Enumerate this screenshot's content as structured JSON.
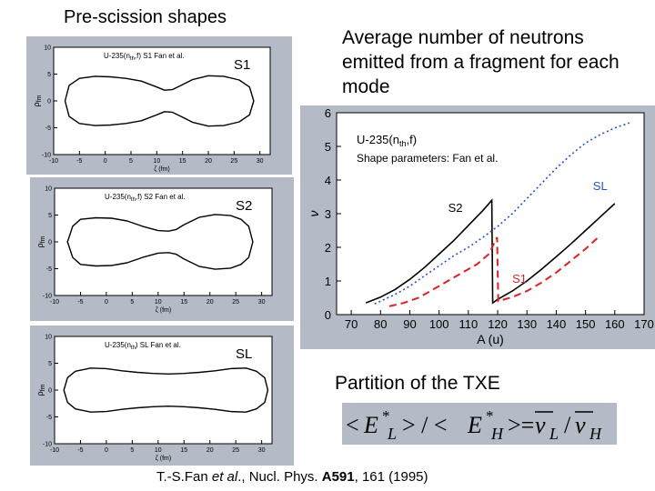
{
  "left_title": "Pre-scission shapes",
  "right_title": "Average number of neutrons emitted from a fragment for each mode",
  "partition_title": "Partition of the TXE",
  "reference": {
    "authors": "T.-S.Fan ",
    "etal": "et al",
    "mid": "., Nucl. Phys. ",
    "volume": "A591",
    "rest": ", 161 (1995)"
  },
  "formula": {
    "lt": "<",
    "E": "E",
    "star": "*",
    "L": "L",
    "H": "H",
    "gt_slash": "> / <",
    "gte": ">=",
    "nu": "ν",
    "slash": "/"
  },
  "chart_data": [
    {
      "type": "line",
      "panel_label": "S1",
      "annotation_prefix": "U-235(n",
      "annotation_sub": "th",
      "annotation_suffix": ",f)  S1   Fan et al.",
      "ylabel": "ρ",
      "ylabel_sub": "fm",
      "xlabel": "ζ (fm)",
      "xlim": [
        -10,
        32
      ],
      "ylim": [
        -10,
        10
      ],
      "xticks": [
        -10,
        -5,
        0,
        5,
        10,
        15,
        20,
        25,
        30
      ],
      "yticks": [
        10,
        5,
        0,
        -5,
        -10
      ],
      "x": [
        -7.8,
        -7,
        -5,
        -2,
        1,
        4,
        7,
        10,
        11.5,
        13,
        14.5,
        17,
        20,
        23,
        26,
        28,
        28.8
      ],
      "y": [
        0,
        2.9,
        4.2,
        4.6,
        4.5,
        4.2,
        3.7,
        2.6,
        2.0,
        2.1,
        2.8,
        4.0,
        4.7,
        4.6,
        3.9,
        2.6,
        0
      ]
    },
    {
      "type": "line",
      "panel_label": "S2",
      "annotation_prefix": "U-235(n",
      "annotation_sub": "th",
      "annotation_suffix": ",f) S2   Fan et al.",
      "ylabel": "ρ",
      "ylabel_sub": "fm",
      "xlabel": "ζ (fm)",
      "xlim": [
        -10,
        32
      ],
      "ylim": [
        -10,
        10
      ],
      "xticks": [
        -10,
        -5,
        0,
        5,
        10,
        15,
        20,
        25,
        30
      ],
      "yticks": [
        10,
        5,
        0,
        -5,
        -10
      ],
      "x": [
        -7.5,
        -6.5,
        -5,
        -2,
        1,
        4,
        7,
        10,
        12,
        13.5,
        15,
        18,
        21,
        24,
        26,
        27.5,
        28.3
      ],
      "y": [
        0,
        2.9,
        4.2,
        4.5,
        4.4,
        3.9,
        2.9,
        2.1,
        2.0,
        2.3,
        3.2,
        4.6,
        5.1,
        4.9,
        4.2,
        2.9,
        0
      ]
    },
    {
      "type": "line",
      "panel_label": "SL",
      "annotation_prefix": "U-235(n",
      "annotation_sub": "th",
      "annotation_suffix": ") SL  Fan et al.",
      "ylabel": "ρ",
      "ylabel_sub": "fm",
      "xlabel": "ζ (fm)",
      "xlim": [
        -10,
        32
      ],
      "ylim": [
        -10,
        10
      ],
      "xticks": [
        -10,
        -5,
        0,
        5,
        10,
        15,
        20,
        25,
        30
      ],
      "yticks": [
        10,
        5,
        0,
        -5,
        -10
      ],
      "x": [
        -8.2,
        -7.5,
        -6,
        -3,
        0,
        3,
        6,
        9,
        12,
        15,
        18,
        21,
        24,
        27,
        29,
        30.6,
        31.2
      ],
      "y": [
        0,
        2.3,
        3.5,
        4.1,
        4.0,
        3.6,
        3.3,
        3.1,
        3.0,
        3.1,
        3.3,
        3.6,
        4.0,
        4.1,
        3.5,
        2.3,
        0
      ]
    },
    {
      "type": "line",
      "title_prefix": "U-235(n",
      "title_sub": "th",
      "title_suffix": ",f)",
      "subtitle": "Shape parameters: Fan et al.",
      "xlabel": "A (u)",
      "ylabel": "ν",
      "xlim": [
        65,
        170
      ],
      "ylim": [
        0,
        6
      ],
      "xticks": [
        70,
        80,
        90,
        100,
        110,
        120,
        130,
        140,
        150,
        160,
        170
      ],
      "yticks": [
        0,
        1,
        2,
        3,
        4,
        5,
        6
      ],
      "series": [
        {
          "name": "S2",
          "color": "#000000",
          "dash": "solid",
          "x": [
            75,
            80,
            85,
            90,
            95,
            100,
            105,
            110,
            115,
            118,
            118.3,
            120,
            125,
            130,
            135,
            140,
            145,
            150,
            155,
            160
          ],
          "y": [
            0.35,
            0.52,
            0.75,
            1.05,
            1.4,
            1.8,
            2.2,
            2.65,
            3.1,
            3.4,
            0.35,
            0.45,
            0.7,
            1.0,
            1.35,
            1.72,
            2.1,
            2.5,
            2.9,
            3.3
          ]
        },
        {
          "name": "SL",
          "color": "#2050e0",
          "dash": "dotted",
          "x": [
            78,
            85,
            90,
            95,
            100,
            105,
            110,
            115,
            120,
            125,
            130,
            135,
            140,
            145,
            150,
            155,
            160,
            165
          ],
          "y": [
            0.32,
            0.6,
            0.85,
            1.15,
            1.45,
            1.75,
            2.0,
            2.3,
            2.62,
            3.0,
            3.45,
            3.9,
            4.35,
            4.75,
            5.1,
            5.35,
            5.55,
            5.7
          ]
        },
        {
          "name": "S1",
          "color": "#e02020",
          "dash": "dashed",
          "x": [
            83,
            88,
            93,
            98,
            103,
            108,
            113,
            117,
            119.8,
            120.2,
            125,
            130,
            135,
            140,
            145,
            150,
            155
          ],
          "y": [
            0.25,
            0.35,
            0.5,
            0.75,
            1.0,
            1.25,
            1.5,
            1.8,
            2.3,
            0.4,
            0.52,
            0.7,
            0.95,
            1.25,
            1.6,
            1.95,
            2.35
          ]
        }
      ]
    }
  ]
}
